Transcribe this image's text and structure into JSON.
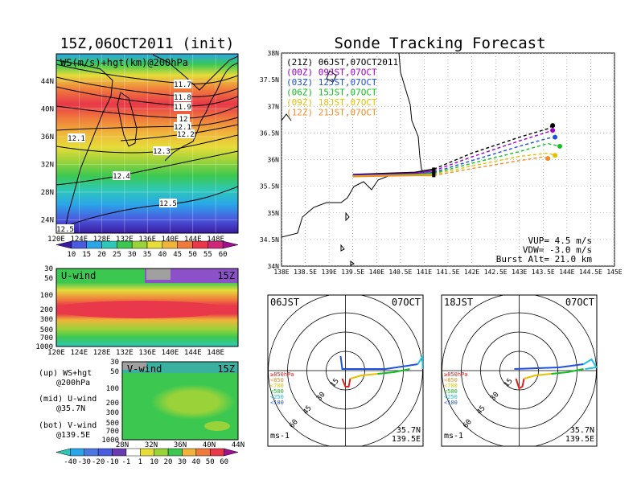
{
  "headers": {
    "left_title": "15Z,06OCT2011 (init)",
    "right_title": "Sonde Tracking Forecast"
  },
  "map_panel": {
    "label": "WS(m/s)+hgt(km)@200hPa",
    "lat_ticks": [
      "44N",
      "40N",
      "36N",
      "32N",
      "28N",
      "24N"
    ],
    "lon_ticks": [
      "120E",
      "124E",
      "128E",
      "132E",
      "136E",
      "140E",
      "144E",
      "148E"
    ],
    "contours": [
      "11.7",
      "11.8",
      "11.9",
      "12",
      "12.1",
      "12.2",
      "12.1",
      "12.3",
      "12.4",
      "12.5",
      "12.5"
    ]
  },
  "colorbar_ws": {
    "ticks": [
      "10",
      "15",
      "20",
      "25",
      "30",
      "35",
      "40",
      "45",
      "50",
      "55",
      "60"
    ]
  },
  "u_panel": {
    "label": "U-wind",
    "time": "15Z",
    "y_ticks": [
      "30",
      "50",
      "100",
      "200",
      "300",
      "500",
      "700",
      "1000"
    ],
    "x_ticks": [
      "120E",
      "124E",
      "128E",
      "132E",
      "136E",
      "140E",
      "144E",
      "148E"
    ]
  },
  "v_panel": {
    "label": "V-wind",
    "time": "15Z",
    "y_ticks": [
      "30",
      "50",
      "100",
      "200",
      "300",
      "500",
      "700",
      "1000"
    ],
    "x_ticks": [
      "28N",
      "32N",
      "36N",
      "40N",
      "44N"
    ]
  },
  "legend_notes": [
    {
      "line1": "(up) WS+hgt",
      "line2": "@200hPa"
    },
    {
      "line1": "(mid) U-wind",
      "line2": "@35.7N"
    },
    {
      "line1": "(bot) V-wind",
      "line2": "@139.5E"
    }
  ],
  "colorbar_uv": {
    "ticks": [
      "-40",
      "-30",
      "-20",
      "-10",
      "-1",
      "1",
      "10",
      "20",
      "30",
      "40",
      "50",
      "60"
    ]
  },
  "track_panel": {
    "lat_ticks": [
      "38N",
      "37.5N",
      "37N",
      "36.5N",
      "36N",
      "35.5N",
      "35N",
      "34.5N",
      "34N"
    ],
    "lon_ticks": [
      "138E",
      "138.5E",
      "139E",
      "139.5E",
      "140E",
      "140.5E",
      "141E",
      "141.5E",
      "142E",
      "142.5E",
      "143E",
      "143.5E",
      "144E",
      "144.5E",
      "145E"
    ],
    "legend": [
      {
        "text": "(21Z) 06JST,07OCT2011",
        "color": "#000000"
      },
      {
        "text": "(00Z) 09JST,07OCT",
        "color": "#a000c8"
      },
      {
        "text": "(03Z) 12JST,07OCT",
        "color": "#2050e0"
      },
      {
        "text": "(06Z) 15JST,07OCT",
        "color": "#10c020"
      },
      {
        "text": "(09Z) 18JST,07OCT",
        "color": "#e8c000"
      },
      {
        "text": "(12Z) 21JST,07OCT",
        "color": "#f08c28"
      }
    ],
    "info": [
      "VUP= 4.5 m/s",
      "VDW= -3.0 m/s",
      "Burst Alt= 21.0 km"
    ]
  },
  "chart_data": {
    "type": "line",
    "title": "Sonde Tracking Forecast",
    "xlabel": "",
    "ylabel": "",
    "xlim": [
      138,
      145
    ],
    "ylim": [
      34,
      38
    ],
    "series": [
      {
        "name": "(21Z) 06JST,07OCT2011",
        "color": "#000000",
        "points": [
          [
            139.5,
            35.72
          ],
          [
            140.8,
            35.76
          ],
          [
            141.2,
            35.82
          ],
          [
            142.0,
            36.12
          ],
          [
            143.0,
            36.42
          ],
          [
            143.6,
            36.58
          ],
          [
            143.7,
            36.64
          ]
        ]
      },
      {
        "name": "(00Z) 09JST,07OCT",
        "color": "#a000c8",
        "points": [
          [
            139.5,
            35.71
          ],
          [
            140.8,
            35.74
          ],
          [
            141.2,
            35.79
          ],
          [
            142.0,
            36.05
          ],
          [
            143.0,
            36.35
          ],
          [
            143.6,
            36.52
          ],
          [
            143.7,
            36.55
          ]
        ]
      },
      {
        "name": "(03Z) 12JST,07OCT",
        "color": "#2050e0",
        "points": [
          [
            139.5,
            35.7
          ],
          [
            140.8,
            35.72
          ],
          [
            141.2,
            35.76
          ],
          [
            142.0,
            35.98
          ],
          [
            143.0,
            36.25
          ],
          [
            143.6,
            36.4
          ],
          [
            143.75,
            36.42
          ]
        ]
      },
      {
        "name": "(06Z) 15JST,07OCT",
        "color": "#10c020",
        "points": [
          [
            139.5,
            35.69
          ],
          [
            140.8,
            35.72
          ],
          [
            141.2,
            35.74
          ],
          [
            142.0,
            35.93
          ],
          [
            143.0,
            36.15
          ],
          [
            143.6,
            36.3
          ],
          [
            143.85,
            36.25
          ]
        ]
      },
      {
        "name": "(09Z) 18JST,07OCT",
        "color": "#e8c000",
        "points": [
          [
            139.5,
            35.69
          ],
          [
            140.8,
            35.71
          ],
          [
            141.2,
            35.72
          ],
          [
            142.0,
            35.88
          ],
          [
            143.0,
            36.06
          ],
          [
            143.6,
            36.12
          ],
          [
            143.75,
            36.08
          ]
        ]
      },
      {
        "name": "(12Z) 21JST,07OCT",
        "color": "#f08c28",
        "points": [
          [
            139.5,
            35.68
          ],
          [
            140.8,
            35.7
          ],
          [
            141.2,
            35.7
          ],
          [
            142.0,
            35.83
          ],
          [
            143.0,
            35.98
          ],
          [
            143.5,
            36.05
          ],
          [
            143.6,
            36.02
          ]
        ]
      }
    ]
  },
  "hodo_left": {
    "time": "06JST",
    "date": "07OCT",
    "ring_labels": [
      "15",
      "30",
      "45",
      "60"
    ],
    "legend": [
      "≥850hPa",
      "<850",
      "<700",
      "<500",
      "<250",
      "<100"
    ],
    "units": "ms-1",
    "lat": "35.7N",
    "lon": "139.5E"
  },
  "hodo_right": {
    "time": "18JST",
    "date": "07OCT",
    "ring_labels": [
      "15",
      "30",
      "45",
      "60"
    ],
    "legend": [
      "≥850hPa",
      "<850",
      "<700",
      "<500",
      "<250",
      "<100"
    ],
    "units": "ms-1",
    "lat": "35.7N",
    "lon": "139.5E"
  }
}
